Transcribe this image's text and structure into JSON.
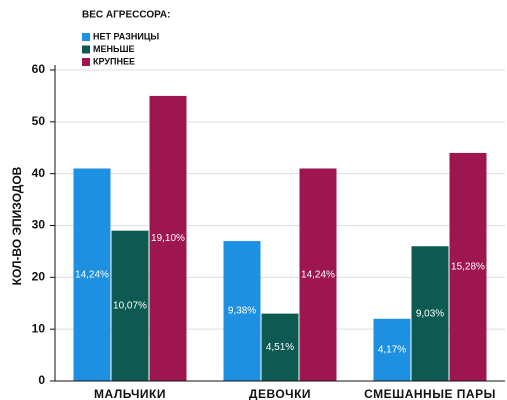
{
  "chart_data": {
    "type": "bar",
    "legend_title": "ВЕС АГРЕССОРА:",
    "y_label": "КОЛ-ВО ЭПИЗОДОВ",
    "categories": [
      "МАЛЬЧИКИ",
      "ДЕВОЧКИ",
      "СМЕШАННЫЕ ПАРЫ"
    ],
    "series": [
      {
        "name": "НЕТ РАЗНИЦЫ",
        "color": "#1e90e2",
        "values": [
          41,
          27,
          12
        ],
        "labels": [
          "14,24%",
          "9,38%",
          "4,17%"
        ]
      },
      {
        "name": "МЕНЬШЕ",
        "color": "#0c5a52",
        "values": [
          29,
          13,
          26
        ],
        "labels": [
          "10,07%",
          "4,51%",
          "9,03%"
        ]
      },
      {
        "name": "КРУПНЕЕ",
        "color": "#9e1650",
        "values": [
          55,
          41,
          44
        ],
        "labels": [
          "19,10%",
          "14,24%",
          "15,28%"
        ]
      }
    ],
    "ylim": [
      0,
      60
    ],
    "yticks": [
      0,
      10,
      20,
      30,
      40,
      50,
      60
    ],
    "grid": true
  }
}
